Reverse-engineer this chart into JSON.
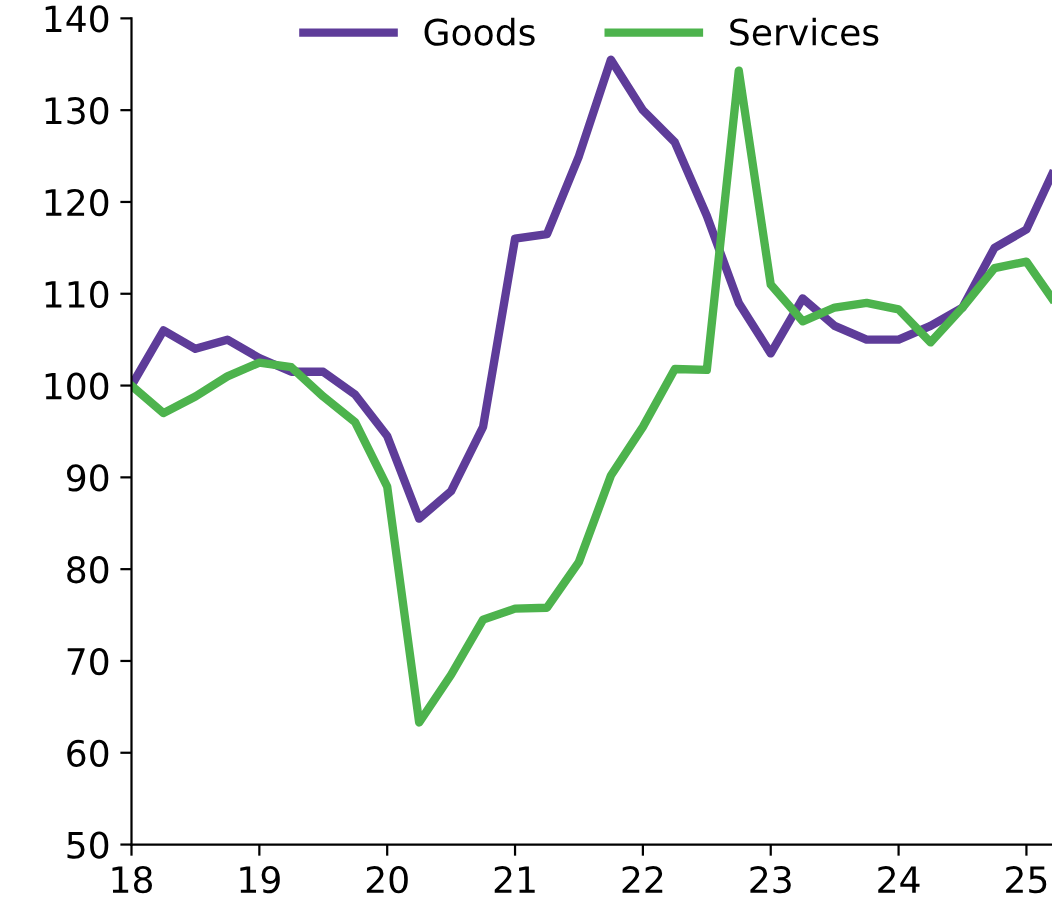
{
  "chart_data": {
    "type": "line",
    "xlim": [
      18,
      25.2
    ],
    "xticks": [
      18,
      19,
      20,
      21,
      22,
      23,
      24,
      25
    ],
    "ylim": [
      50,
      140
    ],
    "yticks": [
      50,
      60,
      70,
      80,
      90,
      100,
      110,
      120,
      130,
      140
    ],
    "grid": false,
    "legend": "top",
    "line_style": "solid",
    "x": [
      18,
      18.25,
      18.5,
      18.75,
      19,
      19.25,
      19.5,
      19.75,
      20,
      20.25,
      20.5,
      20.75,
      21,
      21.25,
      21.5,
      21.75,
      22,
      22.25,
      22.5,
      22.75,
      23,
      23.25,
      23.5,
      23.75,
      24,
      24.25,
      24.5,
      24.75,
      25,
      25.2
    ],
    "series": [
      {
        "name": "Goods",
        "color": "#5e3c99",
        "values": [
          100,
          106,
          104,
          105,
          103,
          101.5,
          101.5,
          99,
          94.5,
          85.5,
          88.5,
          95.5,
          116,
          116.5,
          125,
          135.5,
          130,
          126.5,
          118.5,
          109,
          103.5,
          109.5,
          106.5,
          105,
          105,
          106.5,
          108.5,
          115,
          117,
          123
        ]
      },
      {
        "name": "Services",
        "color": "#4db34d",
        "values": [
          100,
          97,
          98.8,
          101,
          102.5,
          102,
          98.8,
          96,
          89,
          63.3,
          68.5,
          74.5,
          75.7,
          75.8,
          80.8,
          90.2,
          95.5,
          101.8,
          101.7,
          134.3,
          111,
          107,
          108.5,
          109,
          108.3,
          104.7,
          108.5,
          112.8,
          113.5,
          109.5
        ]
      }
    ]
  }
}
